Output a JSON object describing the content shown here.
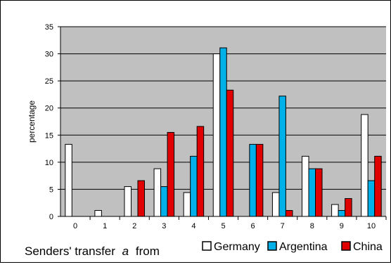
{
  "chart_data": {
    "type": "bar",
    "title": "",
    "xlabel": "Senders' transfer",
    "xlabel_symbol": "a",
    "xlabel_suffix": "from",
    "ylabel": "percentage",
    "ylim": [
      0,
      35
    ],
    "yticks": [
      "0",
      "5",
      "10",
      "15",
      "20",
      "25",
      "30",
      "35"
    ],
    "grid": true,
    "plot_background": "#c0c0c0",
    "legend_position": "bottom-right",
    "categories": [
      "0",
      "1",
      "2",
      "3",
      "4",
      "5",
      "6",
      "7",
      "8",
      "9",
      "10"
    ],
    "series": [
      {
        "name": "Germany",
        "color": "#ffffff",
        "values": [
          13.3,
          1.1,
          5.5,
          8.8,
          4.4,
          30.0,
          0,
          4.4,
          11.1,
          2.2,
          18.8
        ]
      },
      {
        "name": "Argentina",
        "color": "#00b0e8",
        "values": [
          0,
          0,
          0,
          5.5,
          11.1,
          31.1,
          13.3,
          22.2,
          8.8,
          1.1,
          6.6
        ]
      },
      {
        "name": "China",
        "color": "#e00000",
        "values": [
          0,
          0,
          6.6,
          15.5,
          16.6,
          23.3,
          13.3,
          1.1,
          8.8,
          3.3,
          11.1
        ]
      }
    ]
  }
}
